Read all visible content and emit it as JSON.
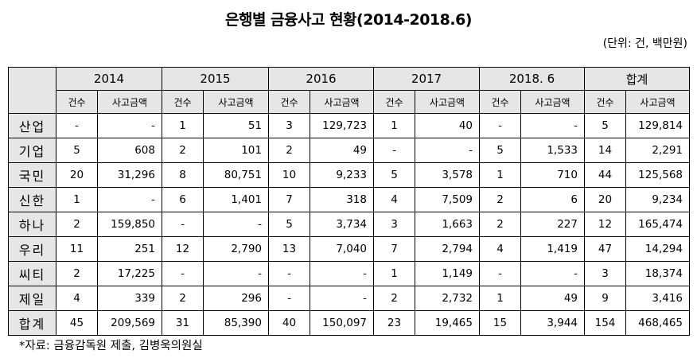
{
  "title": "은행별 금융사고 현황(2014-2018.6)",
  "unit": "(단위: 건, 백만원)",
  "table": {
    "periods": [
      "2014",
      "2015",
      "2016",
      "2017",
      "2018. 6",
      "합계"
    ],
    "subheaders": {
      "count": "건수",
      "amount": "사고금액"
    },
    "rows": [
      {
        "bank": "산업",
        "values": [
          "-",
          "-",
          "1",
          "51",
          "3",
          "129,723",
          "1",
          "40",
          "-",
          "-",
          "5",
          "129,814"
        ]
      },
      {
        "bank": "기업",
        "values": [
          "5",
          "608",
          "2",
          "101",
          "2",
          "49",
          "-",
          "-",
          "5",
          "1,533",
          "14",
          "2,291"
        ]
      },
      {
        "bank": "국민",
        "values": [
          "20",
          "31,296",
          "8",
          "80,751",
          "10",
          "9,233",
          "5",
          "3,578",
          "1",
          "710",
          "44",
          "125,568"
        ]
      },
      {
        "bank": "신한",
        "values": [
          "1",
          "-",
          "6",
          "1,401",
          "7",
          "318",
          "4",
          "7,509",
          "2",
          "6",
          "20",
          "9,234"
        ]
      },
      {
        "bank": "하나",
        "values": [
          "2",
          "159,850",
          "-",
          "-",
          "5",
          "3,734",
          "3",
          "1,663",
          "2",
          "227",
          "12",
          "165,474"
        ]
      },
      {
        "bank": "우리",
        "values": [
          "11",
          "251",
          "12",
          "2,790",
          "13",
          "7,040",
          "7",
          "2,794",
          "4",
          "1,419",
          "47",
          "14,294"
        ]
      },
      {
        "bank": "씨티",
        "values": [
          "2",
          "17,225",
          "-",
          "-",
          "-",
          "-",
          "1",
          "1,149",
          "-",
          "-",
          "3",
          "18,374"
        ]
      },
      {
        "bank": "제일",
        "values": [
          "4",
          "339",
          "2",
          "296",
          "-",
          "-",
          "2",
          "2,732",
          "1",
          "49",
          "9",
          "3,416"
        ]
      },
      {
        "bank": "합계",
        "values": [
          "45",
          "209,569",
          "31",
          "85,390",
          "40",
          "150,097",
          "23",
          "19,465",
          "15",
          "3,944",
          "154",
          "468,465"
        ]
      }
    ]
  },
  "footnote": "*자료: 금융감독원 제출, 김병욱의원실",
  "colors": {
    "header_bg": "#e6e6e6",
    "border": "#000000",
    "text": "#000000"
  }
}
